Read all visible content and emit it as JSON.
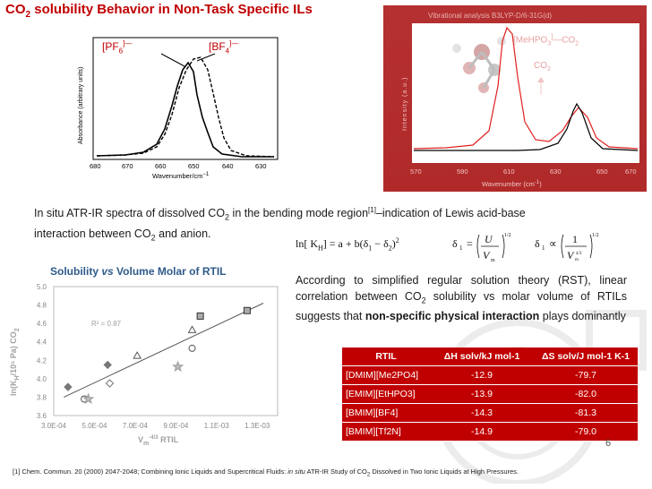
{
  "slide": {
    "title_main": "CO",
    "title_sub": "2",
    "title_rest": " solubility Behavior in Non-Task Specific ILs",
    "page_number": "6"
  },
  "ir_spectrum": {
    "ylabel": "Absorbance (arbitrary units)",
    "xlabel": "Wavenumber/cm",
    "xlabel_sup": "−1",
    "xticks": [
      "680",
      "670",
      "660",
      "650",
      "640",
      "630"
    ],
    "label_pf6": "[PF",
    "label_pf6_sub": "6",
    "label_pf6_sup": "]—",
    "label_bf4": "[BF",
    "label_bf4_sub": "4",
    "label_bf4_sup": "]—"
  },
  "vib_analysis": {
    "title": "Vibrational analysis B3LYP-D/6-31G(d)",
    "ylabel": "Intensity (a.u.)",
    "xlabel": "Wavenumber (cm",
    "xlabel_sup": "-1",
    "xlabel_end": ")",
    "xticks": [
      "570",
      "590",
      "610",
      "630",
      "650",
      "670"
    ],
    "label_complex": "[MeHPO",
    "label_complex_sub": "3",
    "label_complex_sup": "]",
    "label_complex_end": "—CO",
    "label_complex_end_sub": "2",
    "label_co2": "CO",
    "label_co2_sub": "2"
  },
  "intro": {
    "line1_a": "In situ ATR-IR spectra of dissolved CO",
    "line1_sub": "2",
    "line1_b": " in the bending mode region",
    "line1_sup": "[1]",
    "line1_c": "–indication of Lewis acid-base",
    "line2_a": "interaction between CO",
    "line2_sub": "2",
    "line2_b": " and anion."
  },
  "equation": {
    "lhs": "ln[ K",
    "lhs_sub": "H",
    "rhs": "] = a + b(δ",
    "d1": "1",
    "minus": " − δ",
    "d2": "2",
    "close": ")",
    "sq": "2"
  },
  "scatter": {
    "title_a": "Solubility ",
    "title_vs": "vs",
    "title_b": " Volume Molar of RTIL",
    "r2": "R² = 0.87",
    "ylabel": "ln(K",
    "ylabel_sub": "H",
    "ylabel_b": "/10⁵ Pa) CO",
    "ylabel_sub2": "2",
    "xlabel": "V",
    "xlabel_sub": "m",
    "xlabel_sup": "-4/3",
    "xlabel_b": " RTIL",
    "yticks": [
      "5.0",
      "4.8",
      "4.6",
      "4.4",
      "4.2",
      "4.0",
      "3.8",
      "3.6"
    ],
    "xticks": [
      "3.0E-04",
      "5.0E-04",
      "7.0E-04",
      "9.0E-04",
      "1.1E-03",
      "1.3E-03"
    ]
  },
  "chart_data": {
    "type": "scatter",
    "title": "Solubility vs Volume Molar of RTIL",
    "xlabel": "Vm-4/3 RTIL",
    "ylabel": "ln(KH/10⁵ Pa) CO2",
    "xlim": [
      0.0003,
      0.0014
    ],
    "ylim": [
      3.6,
      5.0
    ],
    "annotation": "R² = 0.87",
    "series": [
      {
        "marker": "diamond",
        "x": 0.00037,
        "y": 3.91
      },
      {
        "marker": "circle",
        "x": 0.00045,
        "y": 3.78
      },
      {
        "marker": "star",
        "x": 0.00047,
        "y": 3.78
      },
      {
        "marker": "diamond",
        "x": 0.000565,
        "y": 4.15
      },
      {
        "marker": "diamond-open",
        "x": 0.000575,
        "y": 3.95
      },
      {
        "marker": "triangle",
        "x": 0.00071,
        "y": 4.25
      },
      {
        "marker": "star",
        "x": 0.00091,
        "y": 4.13
      },
      {
        "marker": "circle",
        "x": 0.00098,
        "y": 4.33
      },
      {
        "marker": "triangle",
        "x": 0.00098,
        "y": 4.53
      },
      {
        "marker": "square",
        "x": 0.00102,
        "y": 4.68
      },
      {
        "marker": "square",
        "x": 0.00125,
        "y": 4.74
      }
    ],
    "trendline": {
      "x": [
        0.00035,
        0.00133
      ],
      "y": [
        3.8,
        4.82
      ]
    }
  },
  "rst_text": {
    "part1": "According to simplified regular solution theory (RST), linear correlation between CO",
    "sub": "2",
    "part2": " solubility vs molar volume of RTILs suggests that ",
    "bold": "non-specific physical  interaction",
    "part3": " plays dominantly"
  },
  "table": {
    "headers": [
      "RTIL",
      "ΔH solv/kJ mol-1",
      "ΔS solv/J mol-1 K-1"
    ],
    "rows": [
      [
        "[DMIM][Me2PO4]",
        "-12.9",
        "-79.7"
      ],
      [
        "[EMIM][EtHPO3]",
        "-13.9",
        "-82.0"
      ],
      [
        "[BMIM][BF4]",
        "-14.3",
        "-81.3"
      ],
      [
        "[BMIM][Tf2N]",
        "-14.9",
        "-79.0"
      ]
    ]
  },
  "reference": {
    "a": "[1] Chem. Commun. 20 (2000) 2047-2048; Combining Ionic Liquids and Supercritical Fluids: ",
    "italic": "in situ",
    "b": " ATR-IR Study of CO",
    "sub": "2",
    "c": " Dissolved in Two Ionic Liquids at High Pressures."
  },
  "colors": {
    "title": "#c00000",
    "table_bg": "#c00000",
    "scatter_axis": "#555555",
    "vib_bg": "#b93030",
    "scatter_title": "#2e5a8a"
  }
}
